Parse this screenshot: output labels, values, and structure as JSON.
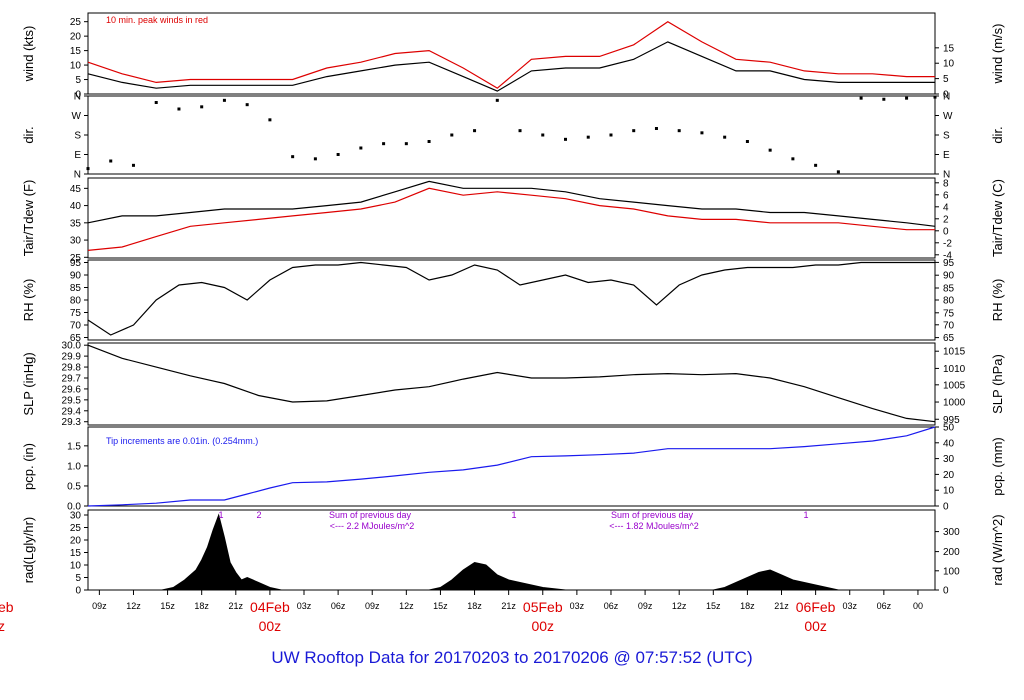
{
  "title": "UW Rooftop Data for 20170203  to  20170206 @ 07:57:52  (UTC)",
  "colors": {
    "axis": "#000000",
    "red": "#dd0000",
    "blue": "#1a1aee",
    "purple": "#9900cc"
  },
  "chart_data": [
    {
      "type": "line",
      "name": "wind",
      "ylabel": "wind (kts)",
      "ylabel_right": "wind (m/s)",
      "ylim": [
        0,
        28
      ],
      "yticks": [
        "0",
        "5",
        "10",
        "15",
        "20",
        "25"
      ],
      "ytick_values": [
        0,
        5,
        10,
        15,
        20,
        25
      ],
      "yticks_right": [
        "0",
        "5",
        "10",
        "15"
      ],
      "annotation": "10 min. peak winds in red",
      "series": [
        {
          "name": "wind speed",
          "color": "#000000",
          "x": [
            0,
            3,
            6,
            9,
            12,
            15,
            18,
            21,
            24,
            27,
            30,
            33,
            36,
            39,
            42,
            45,
            48,
            51,
            54,
            57,
            60,
            63,
            66,
            69,
            72,
            74.5
          ],
          "values": [
            7,
            4,
            2,
            3,
            3,
            3,
            3,
            6,
            8,
            10,
            11,
            6,
            1,
            8,
            9,
            9,
            12,
            18,
            13,
            8,
            8,
            5,
            4,
            4,
            4,
            4
          ]
        },
        {
          "name": "10 min. peak winds",
          "color": "#dd0000",
          "x": [
            0,
            3,
            6,
            9,
            12,
            15,
            18,
            21,
            24,
            27,
            30,
            33,
            36,
            39,
            42,
            45,
            48,
            51,
            54,
            57,
            60,
            63,
            66,
            69,
            72,
            74.5
          ],
          "values": [
            11,
            7,
            4,
            5,
            5,
            5,
            5,
            9,
            11,
            14,
            15,
            9,
            2,
            12,
            13,
            13,
            17,
            25,
            18,
            12,
            11,
            8,
            7,
            7,
            6,
            6
          ]
        }
      ]
    },
    {
      "type": "scatter",
      "name": "direction",
      "ylabel": "dir.",
      "ylabel_right": "dir.",
      "ylim": [
        0,
        360
      ],
      "yticks": [
        "N",
        "E",
        "S",
        "W",
        "N"
      ],
      "ytick_values": [
        0,
        90,
        180,
        270,
        360
      ],
      "yticks_right": [
        "N",
        "E",
        "S",
        "W",
        "N"
      ],
      "series": [
        {
          "name": "wind direction",
          "color": "#000000",
          "x": [
            0,
            2,
            4,
            6,
            8,
            10,
            12,
            14,
            16,
            18,
            20,
            22,
            24,
            26,
            28,
            30,
            32,
            34,
            36,
            38,
            40,
            42,
            44,
            46,
            48,
            50,
            52,
            54,
            56,
            58,
            60,
            62,
            64,
            66,
            68,
            70,
            72,
            74.5
          ],
          "values": [
            25,
            60,
            40,
            330,
            300,
            310,
            340,
            320,
            250,
            80,
            70,
            90,
            120,
            140,
            140,
            150,
            180,
            200,
            340,
            200,
            180,
            160,
            170,
            180,
            200,
            210,
            200,
            190,
            170,
            150,
            110,
            70,
            40,
            10,
            350,
            345,
            350,
            355
          ]
        }
      ]
    },
    {
      "type": "line",
      "name": "temperature",
      "ylabel": "Tair/Tdew (F)",
      "ylabel_right": "Tair/Tdew (C)",
      "ylim": [
        24.8,
        48
      ],
      "yticks": [
        "25",
        "30",
        "35",
        "40",
        "45"
      ],
      "ytick_values": [
        25,
        30,
        35,
        40,
        45
      ],
      "yticks_right": [
        "-4",
        "-2",
        "0",
        "2",
        "4",
        "6",
        "8"
      ],
      "series": [
        {
          "name": "Tair",
          "color": "#000000",
          "x": [
            0,
            3,
            6,
            9,
            12,
            15,
            18,
            21,
            24,
            27,
            30,
            33,
            36,
            39,
            42,
            45,
            48,
            51,
            54,
            57,
            60,
            63,
            66,
            69,
            72,
            74.5
          ],
          "values": [
            35,
            37,
            37,
            38,
            39,
            39,
            39,
            40,
            41,
            44,
            47,
            45,
            45,
            45,
            44,
            42,
            41,
            40,
            39,
            39,
            38,
            38,
            37,
            36,
            35,
            34
          ]
        },
        {
          "name": "Tdew",
          "color": "#dd0000",
          "x": [
            0,
            3,
            6,
            9,
            12,
            15,
            18,
            21,
            24,
            27,
            30,
            33,
            36,
            39,
            42,
            45,
            48,
            51,
            54,
            57,
            60,
            63,
            66,
            69,
            72,
            74.5
          ],
          "values": [
            27,
            28,
            31,
            34,
            35,
            36,
            37,
            38,
            39,
            41,
            45,
            43,
            44,
            43,
            42,
            40,
            39,
            37,
            36,
            36,
            35,
            35,
            35,
            34,
            33,
            33
          ]
        }
      ]
    },
    {
      "type": "line",
      "name": "relative humidity",
      "ylabel": "RH (%)",
      "ylabel_right": "RH (%)",
      "ylim": [
        64,
        96
      ],
      "yticks": [
        "65",
        "70",
        "75",
        "80",
        "85",
        "90",
        "95"
      ],
      "ytick_values": [
        65,
        70,
        75,
        80,
        85,
        90,
        95
      ],
      "yticks_right": [
        "65",
        "70",
        "75",
        "80",
        "85",
        "90",
        "95"
      ],
      "series": [
        {
          "name": "RH",
          "color": "#000000",
          "x": [
            0,
            2,
            4,
            6,
            8,
            10,
            12,
            14,
            16,
            18,
            20,
            22,
            24,
            26,
            28,
            30,
            32,
            34,
            36,
            38,
            40,
            42,
            44,
            46,
            48,
            50,
            52,
            54,
            56,
            58,
            60,
            62,
            64,
            66,
            68,
            70,
            72,
            74.5
          ],
          "values": [
            72,
            66,
            70,
            80,
            86,
            87,
            85,
            80,
            88,
            93,
            94,
            94,
            95,
            94,
            93,
            88,
            90,
            94,
            92,
            86,
            88,
            90,
            87,
            88,
            86,
            78,
            86,
            90,
            92,
            93,
            93,
            93,
            94,
            94,
            95,
            95,
            95,
            95
          ]
        }
      ]
    },
    {
      "type": "line",
      "name": "sea level pressure",
      "ylabel": "SLP (inHg)",
      "ylabel_right": "SLP (hPa)",
      "ylim": [
        29.27,
        30.02
      ],
      "yticks": [
        "29.3",
        "29.4",
        "29.5",
        "29.6",
        "29.7",
        "29.8",
        "29.9",
        "30.0"
      ],
      "ytick_values": [
        29.3,
        29.4,
        29.5,
        29.6,
        29.7,
        29.8,
        29.9,
        30.0
      ],
      "yticks_right": [
        "995",
        "1000",
        "1005",
        "1010",
        "1015"
      ],
      "series": [
        {
          "name": "SLP",
          "color": "#000000",
          "x": [
            0,
            3,
            6,
            9,
            12,
            15,
            18,
            21,
            24,
            27,
            30,
            33,
            36,
            39,
            42,
            45,
            48,
            51,
            54,
            57,
            60,
            63,
            66,
            69,
            72,
            74.5
          ],
          "values": [
            30.0,
            29.88,
            29.8,
            29.72,
            29.65,
            29.54,
            29.48,
            29.49,
            29.54,
            29.59,
            29.62,
            29.69,
            29.75,
            29.7,
            29.7,
            29.71,
            29.73,
            29.74,
            29.73,
            29.74,
            29.7,
            29.62,
            29.52,
            29.42,
            29.33,
            29.3
          ]
        }
      ]
    },
    {
      "type": "line",
      "name": "precipitation",
      "ylabel": "pcp. (in)",
      "ylabel_right": "pcp. (mm)",
      "ylim": [
        0,
        1.97
      ],
      "yticks": [
        "0.0",
        "0.5",
        "1.0",
        "1.5"
      ],
      "ytick_values": [
        0,
        0.5,
        1.0,
        1.5
      ],
      "yticks_right": [
        "0",
        "10",
        "20",
        "30",
        "40",
        "50"
      ],
      "annotation": "Tip increments are 0.01in. (0.254mm.)",
      "series": [
        {
          "name": "cumulative precipitation",
          "color": "#1a1aee",
          "x": [
            0,
            3,
            6,
            9,
            12,
            14,
            16,
            18,
            21,
            24,
            27,
            30,
            33,
            36,
            39,
            42,
            45,
            48,
            51,
            54,
            57,
            60,
            63,
            66,
            69,
            72,
            74.5
          ],
          "values": [
            0.0,
            0.03,
            0.07,
            0.15,
            0.15,
            0.3,
            0.45,
            0.58,
            0.6,
            0.67,
            0.75,
            0.84,
            0.9,
            1.02,
            1.23,
            1.25,
            1.28,
            1.32,
            1.43,
            1.43,
            1.43,
            1.43,
            1.48,
            1.55,
            1.62,
            1.75,
            1.97
          ]
        }
      ]
    },
    {
      "type": "area",
      "name": "solar radiation",
      "ylabel": "rad(Lgly/hr)",
      "ylabel_right": "rad (W/m^2)",
      "ylim": [
        0,
        32
      ],
      "yticks": [
        "0",
        "5",
        "10",
        "15",
        "20",
        "25",
        "30"
      ],
      "ytick_values": [
        0,
        5,
        10,
        15,
        20,
        25,
        30
      ],
      "yticks_right": [
        "0",
        "100",
        "200",
        "300"
      ],
      "annotations": [
        "Sum of previous day",
        "<--- 2.2 MJoules/m^2",
        "Sum of previous day",
        "<--- 1.82 MJoules/m^2"
      ],
      "markers": [
        "1",
        "2",
        "1",
        "1"
      ],
      "series": [
        {
          "name": "radiation",
          "color": "#000000",
          "x": [
            0,
            6.5,
            7.5,
            8.5,
            9.5,
            10,
            10.5,
            11,
            11.5,
            12,
            12.5,
            13,
            13.5,
            14,
            14.5,
            15,
            15.5,
            16,
            17,
            30,
            31,
            32,
            33,
            34,
            35,
            36,
            37,
            38,
            39,
            40,
            41,
            42,
            55,
            56,
            57,
            58,
            59,
            60,
            61,
            62,
            63,
            64,
            65,
            66,
            74.5
          ],
          "values": [
            0,
            0,
            1,
            4,
            8,
            12,
            17,
            24,
            30,
            21,
            11,
            7,
            4,
            5,
            4,
            3,
            2,
            1,
            0,
            0,
            1,
            4,
            8,
            11,
            10,
            6,
            4,
            3,
            2,
            1,
            0.5,
            0,
            0,
            1,
            3,
            5,
            7,
            8,
            6,
            4,
            3,
            2,
            1,
            0,
            0
          ]
        }
      ]
    },
    {
      "type": "axis",
      "name": "time axis",
      "x_unit": "hours since 20170203 07:57 UTC",
      "xlim": [
        0,
        74.5
      ],
      "x": [
        1,
        4,
        7,
        10,
        13,
        16,
        19,
        22,
        25,
        28,
        31,
        34,
        37,
        40,
        43,
        46,
        49,
        52,
        55,
        58,
        61,
        64,
        67,
        70,
        73
      ],
      "xtick_labels": [
        "09z",
        "12z",
        "15z",
        "18z",
        "21z",
        "04Feb",
        "03z",
        "06z",
        "09z",
        "12z",
        "15z",
        "18z",
        "21z",
        "05Feb",
        "03z",
        "06z",
        "09z",
        "12z",
        "15z",
        "18z",
        "21z",
        "06Feb",
        "03z",
        "06z",
        "00"
      ],
      "day_labels": [
        "04Feb",
        "05Feb",
        "06Feb"
      ],
      "day_x": [
        16,
        40,
        64
      ],
      "sub_label": "00z",
      "cut_off_left": [
        "eb",
        "z"
      ]
    }
  ]
}
